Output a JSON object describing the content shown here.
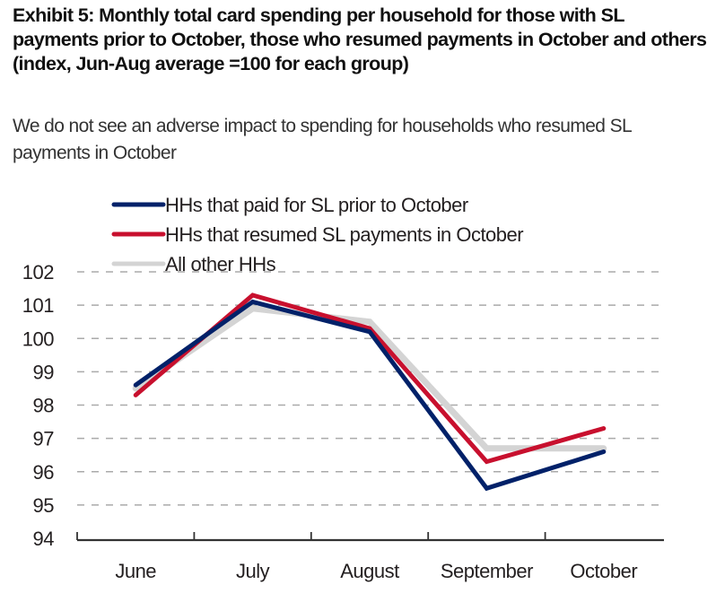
{
  "header": {
    "title": "Exhibit 5: Monthly total card spending per household for those with SL payments prior to October, those who resumed payments in October and others (index, Jun-Aug average =100  for each group)",
    "subtitle": "We do not see an adverse impact to spending for households who resumed SL payments in October"
  },
  "chart_data": {
    "type": "line",
    "title": "Monthly total card spending per household for those with SL payments prior to October, those who resumed payments in October and others (index, Jun-Aug average =100 for each group)",
    "xlabel": "",
    "ylabel": "",
    "categories": [
      "June",
      "July",
      "August",
      "September",
      "October"
    ],
    "ylim": [
      94,
      102
    ],
    "yticks": [
      94,
      95,
      96,
      97,
      98,
      99,
      100,
      101,
      102
    ],
    "grid": true,
    "legend_position": "top-left",
    "series": [
      {
        "name": "All other HHs",
        "color": "#d4d4d4",
        "values": [
          98.5,
          100.9,
          100.5,
          96.7,
          96.7
        ]
      },
      {
        "name": "HHs that resumed SL payments in October",
        "color": "#c8102e",
        "values": [
          98.3,
          101.3,
          100.3,
          96.3,
          97.3
        ]
      },
      {
        "name": "HHs that paid for SL prior to October",
        "color": "#012169",
        "values": [
          98.6,
          101.1,
          100.2,
          95.5,
          96.6
        ]
      }
    ],
    "legend": [
      {
        "name": "HHs that paid for SL prior to October",
        "color": "#012169"
      },
      {
        "name": "HHs that resumed SL payments in October",
        "color": "#c8102e"
      },
      {
        "name": "All other HHs",
        "color": "#d4d4d4"
      }
    ]
  }
}
